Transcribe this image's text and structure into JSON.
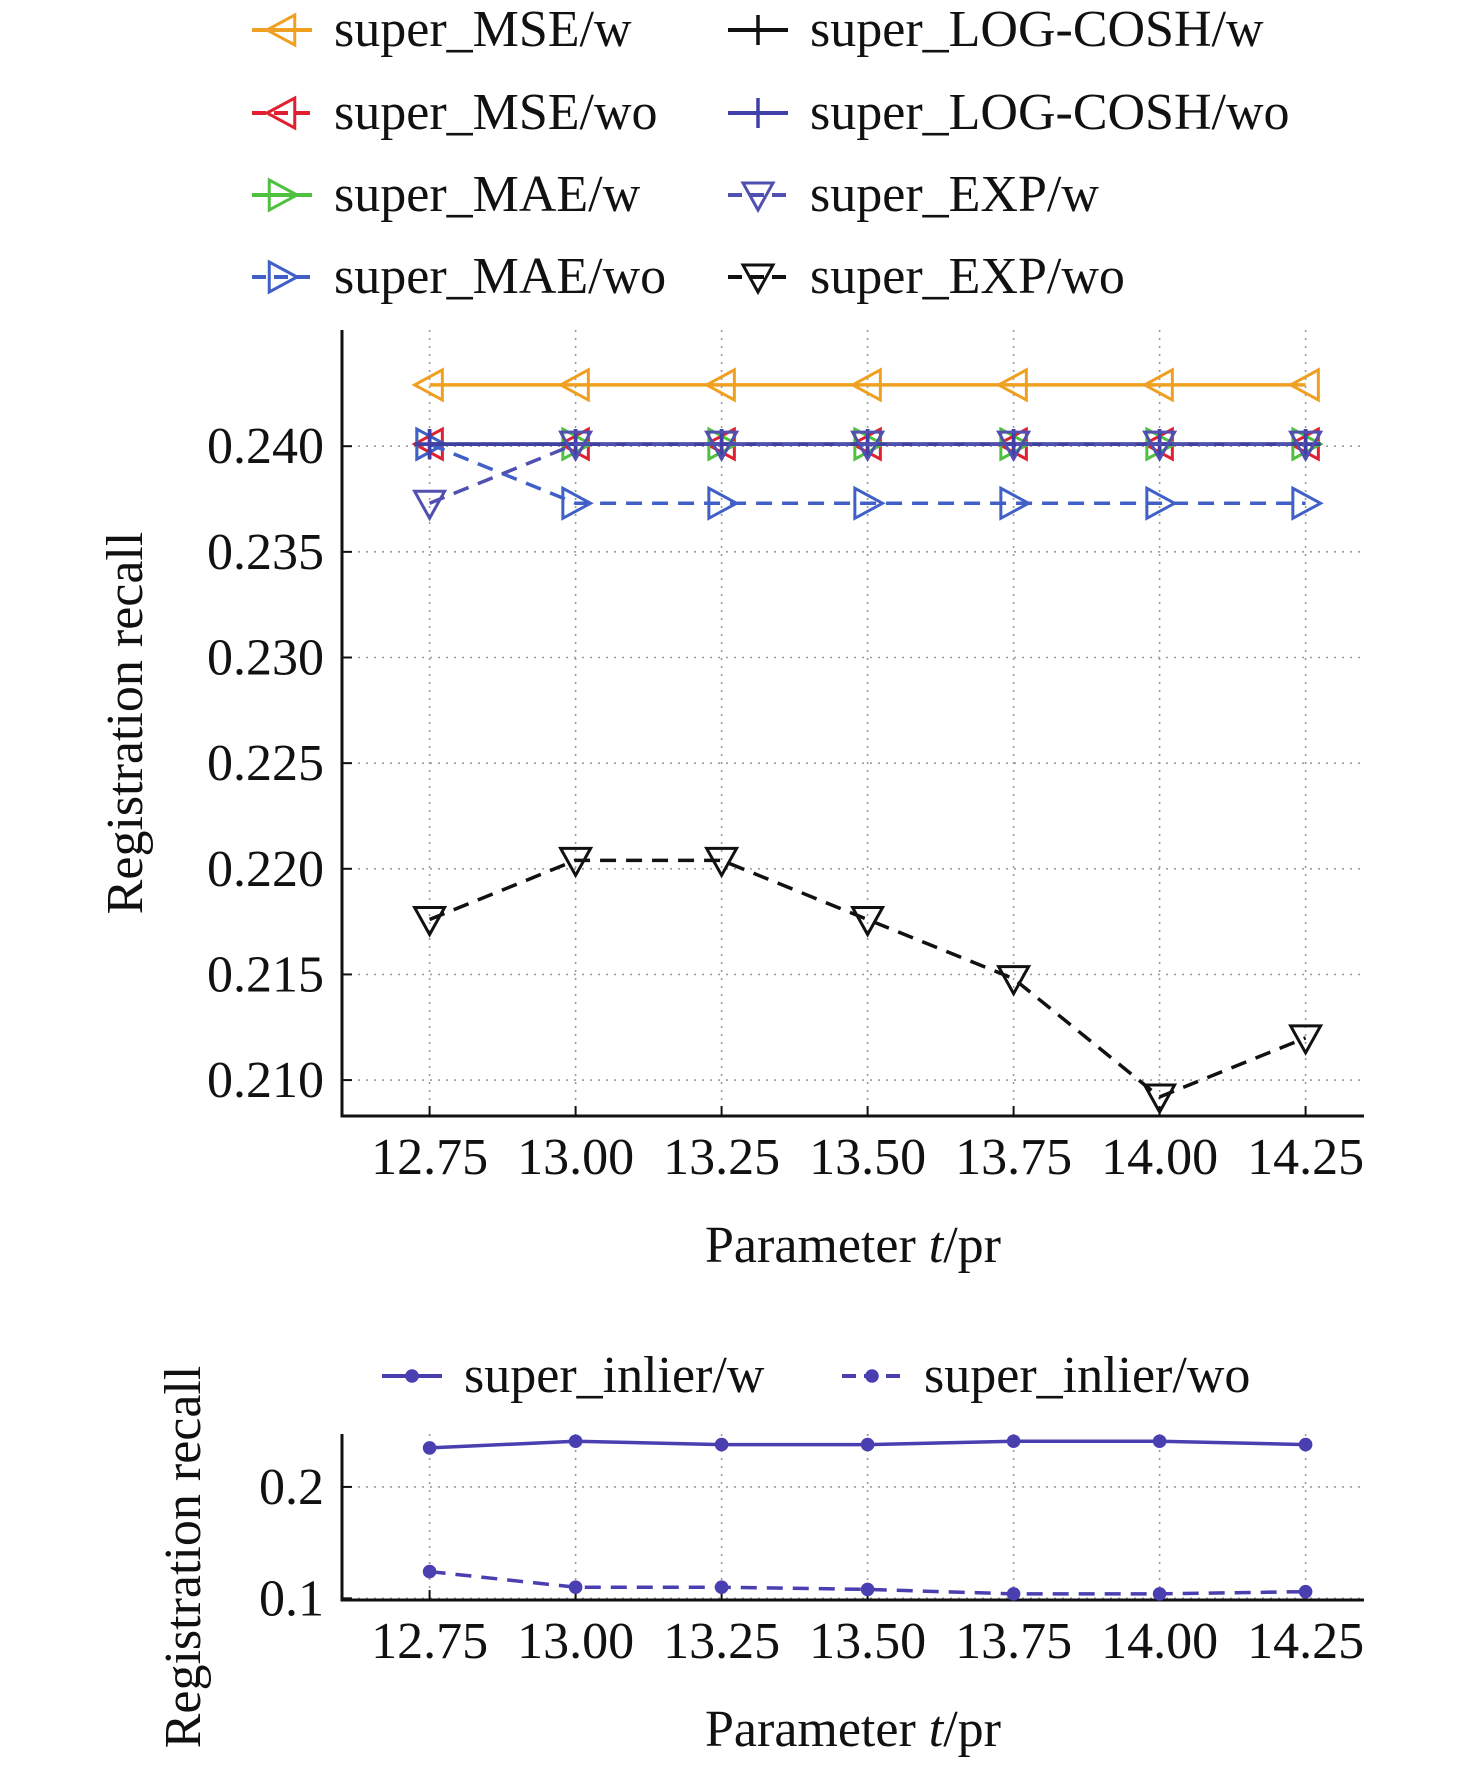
{
  "chart_data": [
    {
      "type": "line",
      "xlabel": "Parameter",
      "xlabel_italic": "t",
      "xlabel_suffix": "/pr",
      "ylabel": "Registration recall",
      "x": [
        12.75,
        13.0,
        13.25,
        13.5,
        13.75,
        14.0,
        14.25
      ],
      "xtick_labels": [
        "12.75",
        "13.00",
        "13.25",
        "13.50",
        "13.75",
        "14.00",
        "14.25"
      ],
      "yticks": [
        0.21,
        0.215,
        0.22,
        0.225,
        0.23,
        0.235,
        0.24
      ],
      "ytick_labels": [
        "0.210",
        "0.215",
        "0.220",
        "0.225",
        "0.230",
        "0.235",
        "0.240"
      ],
      "xlim": [
        12.6,
        14.35
      ],
      "ylim": [
        0.2083,
        0.2455
      ],
      "grid": true,
      "legend_position": "top",
      "series": [
        {
          "name": "super_MSE/w",
          "color": "#f0a020",
          "dash": "solid",
          "marker": "triangle-left",
          "values": [
            0.2429,
            0.2429,
            0.2429,
            0.2429,
            0.2429,
            0.2429,
            0.2429
          ]
        },
        {
          "name": "super_MSE/wo",
          "color": "#e02030",
          "dash": "dashed",
          "marker": "triangle-left",
          "values": [
            0.2401,
            0.2401,
            0.2401,
            0.2401,
            0.2401,
            0.2401,
            0.2401
          ]
        },
        {
          "name": "super_MAE/w",
          "color": "#50c040",
          "dash": "solid",
          "marker": "triangle-right",
          "values": [
            0.2401,
            0.2401,
            0.2401,
            0.2401,
            0.2401,
            0.2401,
            0.2401
          ]
        },
        {
          "name": "super_MAE/wo",
          "color": "#4060c8",
          "dash": "dashed",
          "marker": "triangle-right",
          "values": [
            0.2401,
            0.2373,
            0.2373,
            0.2373,
            0.2373,
            0.2373,
            0.2373
          ]
        },
        {
          "name": "super_LOG-COSH/w",
          "color": "#111111",
          "dash": "solid",
          "marker": "plus",
          "values": [
            0.2401,
            0.2401,
            0.2401,
            0.2401,
            0.2401,
            0.2401,
            0.2401
          ]
        },
        {
          "name": "super_LOG-COSH/wo",
          "color": "#4040a8",
          "dash": "solid",
          "marker": "plus",
          "values": [
            0.2401,
            0.2401,
            0.2401,
            0.2401,
            0.2401,
            0.2401,
            0.2401
          ]
        },
        {
          "name": "super_EXP/w",
          "color": "#5050b0",
          "dash": "dashed",
          "marker": "triangle-down",
          "values": [
            0.2373,
            0.2401,
            0.2401,
            0.2401,
            0.2401,
            0.2401,
            0.2401
          ]
        },
        {
          "name": "super_EXP/wo",
          "color": "#111111",
          "dash": "dashed",
          "marker": "triangle-down",
          "values": [
            0.2176,
            0.2204,
            0.2204,
            0.2176,
            0.2148,
            0.2092,
            0.212
          ]
        }
      ]
    },
    {
      "type": "line",
      "xlabel": "Parameter",
      "xlabel_italic": "t",
      "xlabel_suffix": "/pr",
      "ylabel": "Registration recall",
      "x": [
        12.75,
        13.0,
        13.25,
        13.5,
        13.75,
        14.0,
        14.25
      ],
      "xtick_labels": [
        "12.75",
        "13.00",
        "13.25",
        "13.50",
        "13.75",
        "14.00",
        "14.25"
      ],
      "yticks": [
        0.1,
        0.2
      ],
      "ytick_labels": [
        "0.1",
        "0.2"
      ],
      "xlim": [
        12.6,
        14.35
      ],
      "ylim": [
        0.0985,
        0.2475
      ],
      "grid": true,
      "legend_position": "top",
      "series": [
        {
          "name": "super_inlier/w",
          "color": "#4a3fb0",
          "dash": "solid",
          "marker": "dot",
          "values": [
            0.235,
            0.241,
            0.238,
            0.238,
            0.241,
            0.241,
            0.238
          ]
        },
        {
          "name": "super_inlier/wo",
          "color": "#4a3fb0",
          "dash": "dashed",
          "marker": "dot",
          "values": [
            0.124,
            0.11,
            0.11,
            0.108,
            0.104,
            0.104,
            0.106
          ]
        }
      ]
    }
  ]
}
